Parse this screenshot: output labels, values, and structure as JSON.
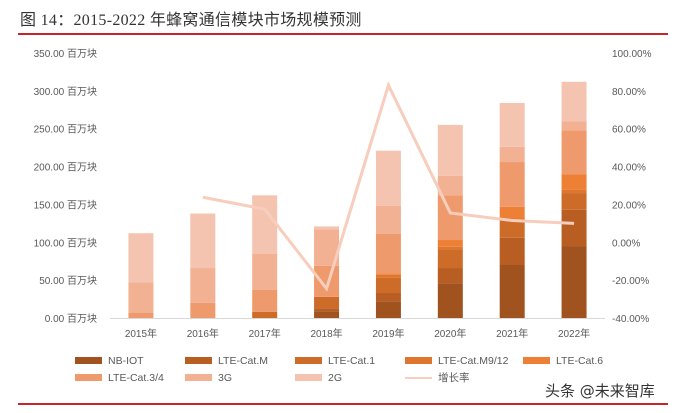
{
  "figure": {
    "title": "图 14：2015-2022 年蜂窝通信模块市场规模预测",
    "watermark": "头条 @未来智库"
  },
  "chart_data": {
    "type": "bar",
    "stacked": true,
    "title": "图 14：2015-2022 年蜂窝通信模块市场规模预测",
    "categories": [
      "2015年",
      "2016年",
      "2017年",
      "2018年",
      "2019年",
      "2020年",
      "2021年",
      "2022年"
    ],
    "ylabel_unit": "百万块",
    "ylim": [
      0,
      350
    ],
    "yticks": [
      0,
      50,
      100,
      150,
      200,
      250,
      300,
      350
    ],
    "ytick_labels": [
      "0.00 百万块",
      "50.00 百万块",
      "100.00 百万块",
      "150.00 百万块",
      "200.00 百万块",
      "250.00 百万块",
      "300.00 百万块",
      "350.00 百万块"
    ],
    "y2lim": [
      -40,
      100
    ],
    "y2ticks": [
      -40,
      -20,
      0,
      20,
      40,
      60,
      80,
      100
    ],
    "y2tick_labels": [
      "-40.00%",
      "-20.00%",
      "0.00%",
      "20.00%",
      "40.00%",
      "60.00%",
      "80.00%",
      "100.00%"
    ],
    "grid": false,
    "legend_position": "bottom",
    "series": [
      {
        "name": "NB-IOT",
        "color": "#a0521f",
        "values": [
          0,
          0,
          0,
          9,
          22,
          46,
          70,
          95
        ]
      },
      {
        "name": "LTE-Cat.M",
        "color": "#b85e22",
        "values": [
          0,
          0,
          0,
          4,
          11,
          20,
          36,
          48
        ]
      },
      {
        "name": "LTE-Cat.1",
        "color": "#cc6c28",
        "values": [
          0,
          0,
          8,
          15,
          20,
          25,
          23,
          22
        ]
      },
      {
        "name": "LTE-Cat.M9/12",
        "color": "#e0762e",
        "values": [
          0,
          0,
          0,
          0,
          4,
          3,
          3,
          5
        ]
      },
      {
        "name": "LTE-Cat.6",
        "color": "#ee8036",
        "values": [
          0,
          0,
          0,
          0,
          2,
          9,
          15,
          20
        ]
      },
      {
        "name": "LTE-Cat.3/4",
        "color": "#ef9a6c",
        "values": [
          6.6,
          20,
          29,
          41,
          52,
          59,
          59,
          58
        ]
      },
      {
        "name": "3G",
        "color": "#f2b193",
        "values": [
          40.4,
          46,
          48,
          48,
          37,
          26,
          20,
          12
        ]
      },
      {
        "name": "2G",
        "color": "#f5c4b1",
        "values": [
          65,
          72,
          77,
          4,
          73,
          67,
          58,
          52
        ]
      }
    ],
    "line_series": {
      "name": "增长率",
      "color": "#f7cdbd",
      "axis": "right",
      "unit": "%",
      "values": [
        null,
        23.8,
        17.5,
        -24.5,
        83.0,
        15.5,
        11.5,
        10.0
      ]
    }
  }
}
